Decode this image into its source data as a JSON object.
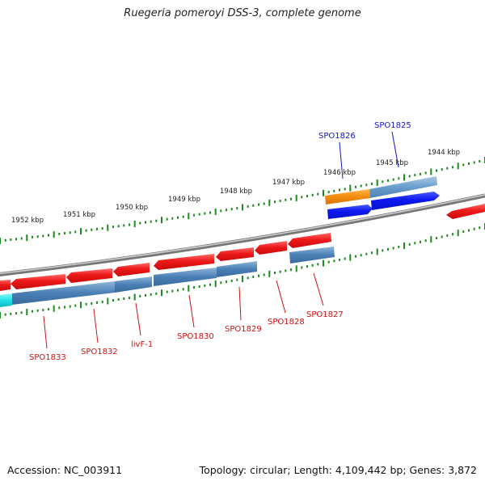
{
  "map": {
    "title": "Ruegeria pomeroyi DSS-3, complete genome",
    "accession_text": "Accession: NC_003911",
    "summary_text": "Topology: circular; Length: 4,109,442 bp; Genes: 3,872"
  },
  "scale_ticks": [
    {
      "label": "1952 kbp"
    },
    {
      "label": "1951 kbp"
    },
    {
      "label": "1950 kbp"
    },
    {
      "label": "1949 kbp"
    },
    {
      "label": "1948 kbp"
    },
    {
      "label": "1947 kbp"
    },
    {
      "label": "1946 kbp"
    },
    {
      "label": "1945 kbp"
    },
    {
      "label": "1944 kbp"
    }
  ],
  "gene_labels_reverse": [
    {
      "name": "SPO1833"
    },
    {
      "name": "SPO1832"
    },
    {
      "name": "livF-1"
    },
    {
      "name": "SPO1830"
    },
    {
      "name": "SPO1829"
    },
    {
      "name": "SPO1828"
    },
    {
      "name": "SPO1827"
    }
  ],
  "gene_labels_forward": [
    {
      "name": "SPO1826"
    },
    {
      "name": "SPO1825"
    }
  ],
  "colors": {
    "reverse_gene": "#e8141c",
    "reverse_cds": "#4a7fb5",
    "forward_gene": "#0a14e8",
    "forward_cds": "#5b93c8",
    "highlight_cds": "#f28c0f",
    "cyan_cds": "#20e0e8",
    "backbone": "#7a7a7a",
    "ticks": "#1c8a1c",
    "reverse_label": "#d01010",
    "forward_label": "#1414c8"
  }
}
